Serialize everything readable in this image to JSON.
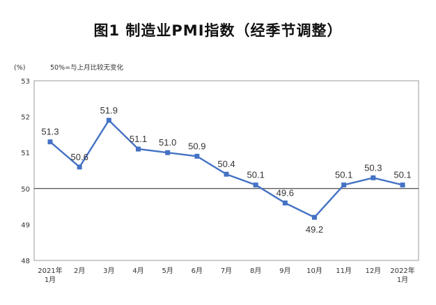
{
  "chart_data": {
    "type": "line",
    "title": "图1 制造业PMI指数（经季节调整）",
    "ylabel": "(%)",
    "annotation": "50%=与上月比较无变化",
    "categories": [
      [
        "2021年",
        "1月"
      ],
      [
        "2月"
      ],
      [
        "3月"
      ],
      [
        "4月"
      ],
      [
        "5月"
      ],
      [
        "6月"
      ],
      [
        "7月"
      ],
      [
        "8月"
      ],
      [
        "9月"
      ],
      [
        "10月"
      ],
      [
        "11月"
      ],
      [
        "12月"
      ],
      [
        "2022年",
        "1月"
      ]
    ],
    "series": [
      {
        "values": [
          51.3,
          50.6,
          51.9,
          51.1,
          51.0,
          50.9,
          50.4,
          50.1,
          49.6,
          49.2,
          50.1,
          50.3,
          50.1
        ]
      }
    ],
    "data_labels": [
      "51.3",
      "50.6",
      "51.9",
      "51.1",
      "51.0",
      "50.9",
      "50.4",
      "50.1",
      "49.6",
      "49.2",
      "50.1",
      "50.3",
      "50.1"
    ],
    "ylim": [
      48,
      53
    ],
    "yticks": [
      48,
      49,
      50,
      51,
      52,
      53
    ],
    "reference_line": 50,
    "grid": false,
    "line_color": "#4472C4",
    "marker_color": "#4472C4"
  }
}
